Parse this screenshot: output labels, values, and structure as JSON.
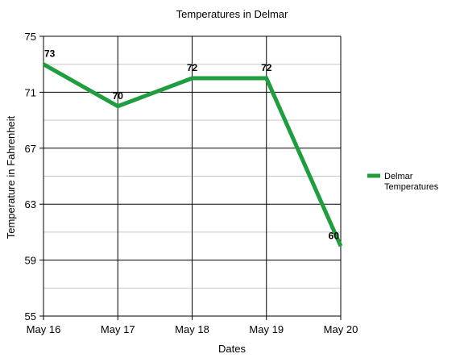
{
  "chart_data": {
    "type": "line",
    "title": "Temperatures in Delmar",
    "xlabel": "Dates",
    "ylabel": "Temperature in Fahrenheit",
    "categories": [
      "May 16",
      "May 17",
      "May 18",
      "May 19",
      "May 20"
    ],
    "series": [
      {
        "name": "Delmar Temperatures",
        "values": [
          73,
          70,
          72,
          72,
          60
        ],
        "color": "#1e9e3e"
      }
    ],
    "data_labels": [
      "73",
      "70",
      "72",
      "72",
      "60"
    ],
    "ylim": [
      55,
      75
    ],
    "yticks": [
      55,
      59,
      63,
      67,
      71,
      75
    ],
    "ytick_labels": [
      "55",
      "59",
      "63",
      "67",
      "71",
      "75"
    ],
    "minor_gridlines": [
      57,
      61,
      65,
      69,
      73
    ],
    "grid": true,
    "legend_position": "right"
  }
}
